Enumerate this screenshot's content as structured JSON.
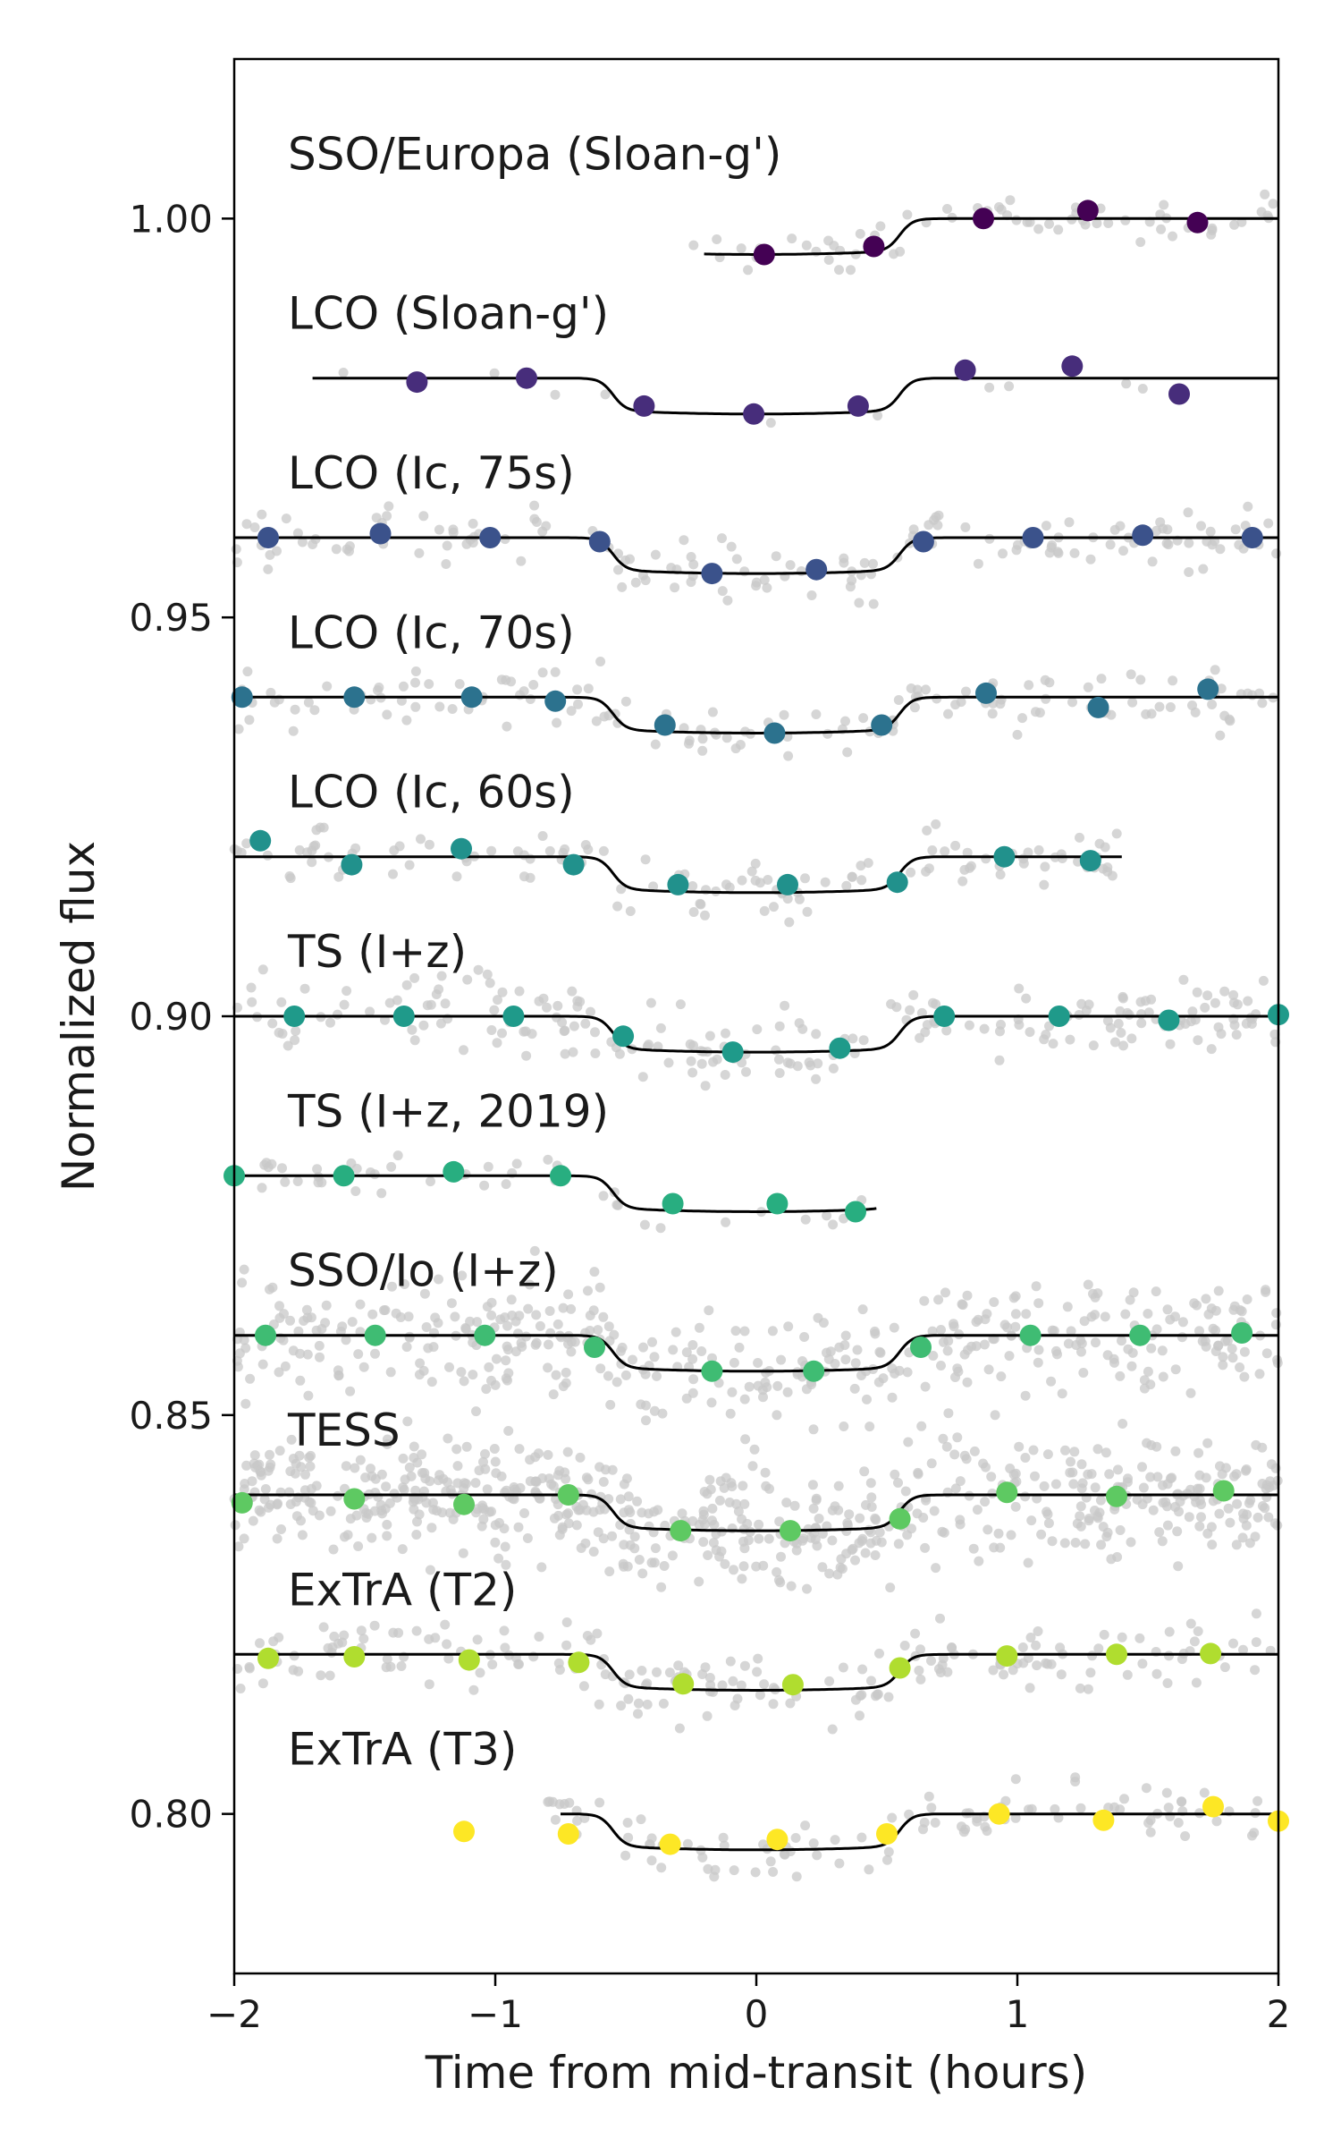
{
  "chart_data": {
    "type": "scatter",
    "xlabel": "Time from mid-transit (hours)",
    "ylabel": "Normalized flux",
    "xlim": [
      -2,
      2
    ],
    "ylim": [
      0.78,
      1.02
    ],
    "x_ticks": [
      -2,
      -1,
      0,
      1,
      2
    ],
    "x_tick_labels": [
      "−2",
      "−1",
      "0",
      "1",
      "2"
    ],
    "y_ticks": [
      0.8,
      0.85,
      0.9,
      0.95,
      1.0
    ],
    "y_tick_labels": [
      "0.80",
      "0.85",
      "0.90",
      "0.95",
      "1.00"
    ],
    "grid": false,
    "legend": "none",
    "raw_point_color": "#c8c8c8",
    "model_color": "#000000",
    "series": [
      {
        "name": "SSO/Europa (Sloan-g')",
        "offset": 1.0,
        "depth": 0.0045,
        "model_x": [
          -0.2,
          2
        ],
        "color": "#440154",
        "x": [
          0.03,
          0.45,
          0.87,
          1.27,
          1.69
        ],
        "y": [
          0.9955,
          0.9965,
          1.0,
          1.001,
          0.9995
        ],
        "raw_density": 70
      },
      {
        "name": "LCO (Sloan-g')",
        "offset": 0.98,
        "depth": 0.0045,
        "model_x": [
          -1.7,
          2
        ],
        "color": "#472d7b",
        "x": [
          -1.3,
          -0.88,
          -0.43,
          -0.01,
          0.39,
          0.8,
          1.21,
          1.62
        ],
        "y": [
          0.9795,
          0.98,
          0.9765,
          0.9755,
          0.9765,
          0.981,
          0.9815,
          0.978
        ],
        "raw_density": 10
      },
      {
        "name": "LCO (Ic, 75s)",
        "offset": 0.96,
        "depth": 0.0045,
        "model_x": [
          -2,
          2
        ],
        "color": "#3b528b",
        "x": [
          -1.87,
          -1.44,
          -1.02,
          -0.6,
          -0.17,
          0.23,
          0.64,
          1.06,
          1.48,
          1.9
        ],
        "y": [
          0.96,
          0.9605,
          0.96,
          0.9595,
          0.9555,
          0.956,
          0.9595,
          0.96,
          0.9603,
          0.96
        ],
        "raw_density": 150
      },
      {
        "name": "LCO (Ic, 70s)",
        "offset": 0.94,
        "depth": 0.0045,
        "model_x": [
          -2,
          2
        ],
        "color": "#2c728e",
        "x": [
          -1.97,
          -1.54,
          -1.09,
          -0.77,
          -0.35,
          0.07,
          0.48,
          0.88,
          1.31,
          1.73
        ],
        "y": [
          0.94,
          0.94,
          0.94,
          0.9395,
          0.9365,
          0.9355,
          0.9365,
          0.9405,
          0.9387,
          0.941
        ],
        "raw_density": 150
      },
      {
        "name": "LCO (Ic, 60s)",
        "offset": 0.92,
        "depth": 0.0045,
        "model_x": [
          -2,
          1.4
        ],
        "color": "#21918c",
        "x": [
          -1.9,
          -1.55,
          -1.13,
          -0.7,
          -0.3,
          0.12,
          0.54,
          0.95,
          1.28
        ],
        "y": [
          0.922,
          0.919,
          0.921,
          0.919,
          0.9165,
          0.9165,
          0.9168,
          0.92,
          0.9195
        ],
        "raw_density": 130
      },
      {
        "name": "TS (I+z)",
        "offset": 0.9,
        "depth": 0.0045,
        "model_x": [
          -2,
          2
        ],
        "color": "#1f9a8a",
        "x": [
          -1.77,
          -1.35,
          -0.93,
          -0.51,
          -0.09,
          0.32,
          0.72,
          1.16,
          1.58,
          2.0
        ],
        "y": [
          0.9,
          0.9,
          0.9,
          0.8975,
          0.8955,
          0.896,
          0.9,
          0.9,
          0.8995,
          0.9002
        ],
        "raw_density": 220
      },
      {
        "name": "TS (I+z, 2019)",
        "offset": 0.88,
        "depth": 0.0045,
        "model_x": [
          -2,
          0.46
        ],
        "color": "#28ae80",
        "x": [
          -2.0,
          -1.58,
          -1.16,
          -0.75,
          -0.32,
          0.08,
          0.38
        ],
        "y": [
          0.88,
          0.88,
          0.8805,
          0.88,
          0.8765,
          0.8765,
          0.8755
        ],
        "raw_density": 45
      },
      {
        "name": "SSO/Io (I+z)",
        "offset": 0.86,
        "depth": 0.0045,
        "model_x": [
          -2,
          2
        ],
        "color": "#3fbc73",
        "x": [
          -1.88,
          -1.46,
          -1.04,
          -0.62,
          -0.17,
          0.22,
          0.63,
          1.05,
          1.47,
          1.86
        ],
        "y": [
          0.86,
          0.86,
          0.86,
          0.8585,
          0.8555,
          0.8555,
          0.8585,
          0.86,
          0.86,
          0.8603
        ],
        "raw_density": 420
      },
      {
        "name": "TESS",
        "offset": 0.84,
        "depth": 0.0045,
        "model_x": [
          -2,
          2
        ],
        "color": "#5ec962",
        "x": [
          -1.97,
          -1.54,
          -1.12,
          -0.72,
          -0.29,
          0.13,
          0.55,
          0.96,
          1.38,
          1.79
        ],
        "y": [
          0.839,
          0.8395,
          0.8388,
          0.84,
          0.8355,
          0.8355,
          0.837,
          0.8403,
          0.8398,
          0.8405
        ],
        "raw_density": 650
      },
      {
        "name": "ExTrA (T2)",
        "offset": 0.82,
        "depth": 0.0045,
        "model_x": [
          -2,
          2
        ],
        "color": "#b0dd2f",
        "x": [
          -1.87,
          -1.54,
          -1.1,
          -0.68,
          -0.28,
          0.14,
          0.55,
          0.96,
          1.38,
          1.74
        ],
        "y": [
          0.8195,
          0.8197,
          0.8193,
          0.819,
          0.8163,
          0.8162,
          0.8183,
          0.8198,
          0.82,
          0.8201
        ],
        "raw_density": 200
      },
      {
        "name": "ExTrA (T3)",
        "offset": 0.8,
        "depth": 0.0045,
        "model_x": [
          -0.75,
          2
        ],
        "color": "#fde725",
        "x": [
          -1.12,
          -0.72,
          -0.33,
          0.08,
          0.5,
          0.93,
          1.33,
          1.75,
          2.0
        ],
        "y": [
          0.7978,
          0.7975,
          0.7962,
          0.7968,
          0.7975,
          0.8,
          0.7992,
          0.8009,
          0.7991
        ],
        "raw_density": 110
      }
    ]
  }
}
